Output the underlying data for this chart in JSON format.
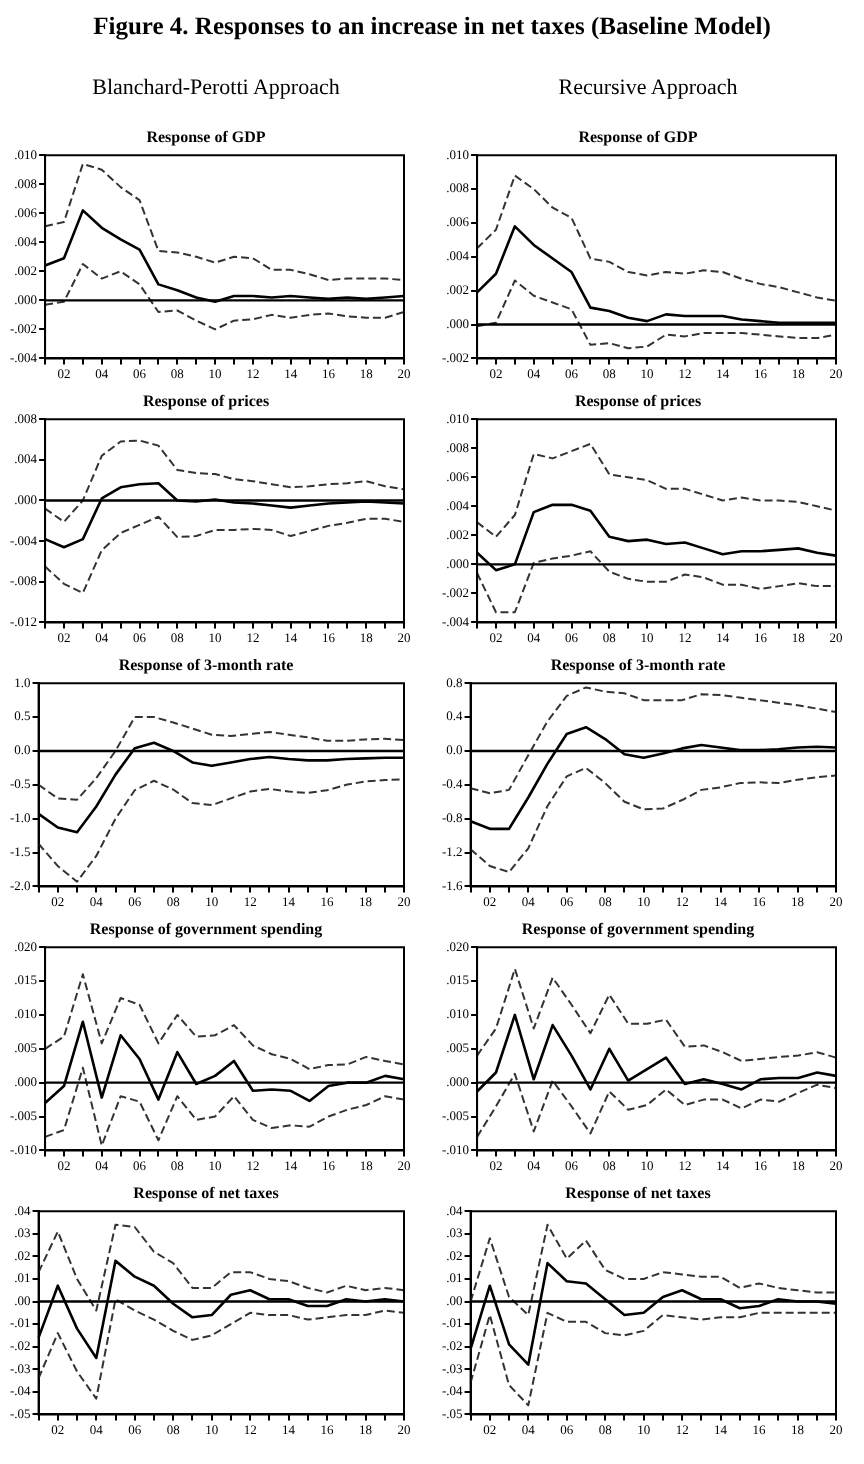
{
  "chart_data": [
    {
      "type": "line",
      "title": "Response of GDP",
      "annotations": [
        "Figure 4. Responses to an increase in net taxes (Baseline Model)",
        "Blanchard-Perotti Approach"
      ],
      "categories": [
        null,
        "02",
        null,
        "04",
        null,
        "06",
        null,
        "08",
        null,
        "10",
        null,
        "12",
        null,
        "14",
        null,
        "16",
        null,
        "18",
        null,
        "20"
      ],
      "ylim": [
        -0.004,
        0.01
      ],
      "yticks": [
        {
          "value": -0.004,
          "label": "-.004"
        },
        {
          "value": -0.002,
          "label": "-.002"
        },
        {
          "value": 0,
          "label": ".000"
        },
        {
          "value": 0.002,
          "label": ".002"
        },
        {
          "value": 0.004,
          "label": ".004"
        },
        {
          "value": 0.006,
          "label": ".006"
        },
        {
          "value": 0.008,
          "label": ".008"
        },
        {
          "value": 0.01,
          "label": ".010"
        }
      ],
      "ref_lines": [
        {
          "axis": "y",
          "value": 0,
          "color": "#000000"
        }
      ],
      "series": [
        {
          "color": "#000000",
          "line_style": "solid",
          "values": [
            0.0024,
            0.0029,
            0.0062,
            0.005,
            0.0042,
            0.0035,
            0.0011,
            0.0007,
            0.0002,
            -0.0001,
            0.0003,
            0.0003,
            0.0002,
            0.0003,
            0.0002,
            0.0001,
            0.0002,
            0.0001,
            0.0002,
            0.0003
          ]
        },
        {
          "color": "#333333",
          "line_style": "dashed",
          "values": [
            0.0051,
            0.0054,
            0.0094,
            0.009,
            0.0078,
            0.0069,
            0.0034,
            0.0033,
            0.003,
            0.0026,
            0.003,
            0.0029,
            0.0021,
            0.0021,
            0.0018,
            0.0014,
            0.0015,
            0.0015,
            0.0015,
            0.0014
          ]
        },
        {
          "color": "#333333",
          "line_style": "dashed",
          "values": [
            -0.0003,
            -0.0001,
            0.0025,
            0.0015,
            0.002,
            0.0011,
            -0.0008,
            -0.0007,
            -0.0014,
            -0.002,
            -0.0014,
            -0.0013,
            -0.001,
            -0.0012,
            -0.001,
            -0.0009,
            -0.0011,
            -0.0012,
            -0.0012,
            -0.0008
          ]
        }
      ]
    },
    {
      "type": "line",
      "title": "Response of GDP",
      "annotations": [
        "Recursive Approach"
      ],
      "categories": [
        null,
        "02",
        null,
        "04",
        null,
        "06",
        null,
        "08",
        null,
        "10",
        null,
        "12",
        null,
        "14",
        null,
        "16",
        null,
        "18",
        null,
        "20"
      ],
      "ylim": [
        -0.002,
        0.01
      ],
      "yticks": [
        {
          "value": -0.002,
          "label": "-.002"
        },
        {
          "value": 0,
          "label": ".000"
        },
        {
          "value": 0.002,
          "label": ".002"
        },
        {
          "value": 0.004,
          "label": ".004"
        },
        {
          "value": 0.006,
          "label": ".006"
        },
        {
          "value": 0.008,
          "label": ".008"
        },
        {
          "value": 0.01,
          "label": ".010"
        }
      ],
      "ref_lines": [
        {
          "axis": "y",
          "value": 0,
          "color": "#000000"
        }
      ],
      "series": [
        {
          "color": "#000000",
          "line_style": "solid",
          "values": [
            0.0019,
            0.003,
            0.0058,
            0.0047,
            0.0039,
            0.0031,
            0.001,
            0.0008,
            0.0004,
            0.0002,
            0.0006,
            0.0005,
            0.0005,
            0.0005,
            0.0003,
            0.0002,
            0.0001,
            0.0001,
            0.0001,
            0.0001
          ]
        },
        {
          "color": "#333333",
          "line_style": "dashed",
          "values": [
            0.0045,
            0.0056,
            0.0088,
            0.008,
            0.0069,
            0.0063,
            0.0039,
            0.0037,
            0.0031,
            0.0029,
            0.0031,
            0.003,
            0.0032,
            0.0031,
            0.0027,
            0.0024,
            0.0022,
            0.0019,
            0.0016,
            0.0014
          ]
        },
        {
          "color": "#333333",
          "line_style": "dashed",
          "values": [
            -0.0001,
            0.0001,
            0.0026,
            0.0017,
            0.0013,
            0.0009,
            -0.0012,
            -0.0011,
            -0.0014,
            -0.0013,
            -0.0006,
            -0.0007,
            -0.0005,
            -0.0005,
            -0.0005,
            -0.0006,
            -0.0007,
            -0.0008,
            -0.0008,
            -0.0006
          ]
        }
      ]
    },
    {
      "type": "line",
      "title": "Response of prices",
      "categories": [
        null,
        "02",
        null,
        "04",
        null,
        "06",
        null,
        "08",
        null,
        "10",
        null,
        "12",
        null,
        "14",
        null,
        "16",
        null,
        "18",
        null,
        "20"
      ],
      "ylim": [
        -0.012,
        0.008
      ],
      "yticks": [
        {
          "value": -0.012,
          "label": "-.012"
        },
        {
          "value": -0.008,
          "label": "-.008"
        },
        {
          "value": -0.004,
          "label": "-.004"
        },
        {
          "value": 0,
          "label": ".000"
        },
        {
          "value": 0.004,
          "label": ".004"
        },
        {
          "value": 0.008,
          "label": ".008"
        }
      ],
      "ref_lines": [
        {
          "axis": "y",
          "value": 0,
          "color": "#000000"
        }
      ],
      "series": [
        {
          "color": "#000000",
          "line_style": "solid",
          "values": [
            -0.0038,
            -0.0046,
            -0.0038,
            0.0002,
            0.0013,
            0.0016,
            0.0017,
            0.0,
            -0.0001,
            0.0001,
            -0.0002,
            -0.0003,
            -0.0005,
            -0.0007,
            -0.0005,
            -0.0003,
            -0.0002,
            -0.0001,
            -0.0002,
            -0.0003
          ]
        },
        {
          "color": "#333333",
          "line_style": "dashed",
          "values": [
            -0.0008,
            -0.0021,
            0.0,
            0.0044,
            0.0058,
            0.0059,
            0.0054,
            0.003,
            0.0027,
            0.0026,
            0.0021,
            0.0019,
            0.0016,
            0.0013,
            0.0014,
            0.0016,
            0.0017,
            0.0019,
            0.0014,
            0.0011
          ]
        },
        {
          "color": "#333333",
          "line_style": "dashed",
          "values": [
            -0.0065,
            -0.0082,
            -0.0091,
            -0.0049,
            -0.0032,
            -0.0024,
            -0.0016,
            -0.0036,
            -0.0035,
            -0.0029,
            -0.0029,
            -0.0028,
            -0.0029,
            -0.0035,
            -0.003,
            -0.0025,
            -0.0022,
            -0.0018,
            -0.0018,
            -0.0021
          ]
        }
      ]
    },
    {
      "type": "line",
      "title": "Response of prices",
      "categories": [
        null,
        "02",
        null,
        "04",
        null,
        "06",
        null,
        "08",
        null,
        "10",
        null,
        "12",
        null,
        "14",
        null,
        "16",
        null,
        "18",
        null,
        "20"
      ],
      "ylim": [
        -0.004,
        0.01
      ],
      "yticks": [
        {
          "value": -0.004,
          "label": "-.004"
        },
        {
          "value": -0.002,
          "label": "-.002"
        },
        {
          "value": 0,
          "label": ".000"
        },
        {
          "value": 0.002,
          "label": ".002"
        },
        {
          "value": 0.004,
          "label": ".004"
        },
        {
          "value": 0.006,
          "label": ".006"
        },
        {
          "value": 0.008,
          "label": ".008"
        },
        {
          "value": 0.01,
          "label": ".010"
        }
      ],
      "ref_lines": [
        {
          "axis": "y",
          "value": 0,
          "color": "#000000"
        }
      ],
      "series": [
        {
          "color": "#000000",
          "line_style": "solid",
          "values": [
            0.0008,
            -0.0004,
            0.0,
            0.0036,
            0.0041,
            0.0041,
            0.0037,
            0.0019,
            0.0016,
            0.0017,
            0.0014,
            0.0015,
            0.0011,
            0.0007,
            0.0009,
            0.0009,
            0.001,
            0.0011,
            0.0008,
            0.0006
          ]
        },
        {
          "color": "#333333",
          "line_style": "dashed",
          "values": [
            0.0029,
            0.0019,
            0.0034,
            0.0076,
            0.0073,
            0.0078,
            0.0083,
            0.0062,
            0.006,
            0.0058,
            0.0052,
            0.0052,
            0.0048,
            0.0044,
            0.0046,
            0.0044,
            0.0044,
            0.0043,
            0.004,
            0.0037
          ]
        },
        {
          "color": "#333333",
          "line_style": "dashed",
          "values": [
            -0.0006,
            -0.0033,
            -0.0033,
            0.0001,
            0.0004,
            0.0006,
            0.0009,
            -0.0005,
            -0.001,
            -0.0012,
            -0.0012,
            -0.0007,
            -0.0009,
            -0.0014,
            -0.0014,
            -0.0017,
            -0.0015,
            -0.0013,
            -0.0015,
            -0.0015
          ]
        }
      ]
    },
    {
      "type": "line",
      "title": "Response of 3-month rate",
      "categories": [
        null,
        "02",
        null,
        "04",
        null,
        "06",
        null,
        "08",
        null,
        "10",
        null,
        "12",
        null,
        "14",
        null,
        "16",
        null,
        "18",
        null,
        "20"
      ],
      "ylim": [
        -2,
        1
      ],
      "yticks": [
        {
          "value": -2,
          "label": "-2.0"
        },
        {
          "value": -1.5,
          "label": "-1.5"
        },
        {
          "value": -1,
          "label": "-1.0"
        },
        {
          "value": -0.5,
          "label": "-0.5"
        },
        {
          "value": 0,
          "label": "0.0"
        },
        {
          "value": 0.5,
          "label": "0.5"
        },
        {
          "value": 1,
          "label": "1.0"
        }
      ],
      "ref_lines": [
        {
          "axis": "y",
          "value": 0,
          "color": "#000000"
        }
      ],
      "series": [
        {
          "color": "#000000",
          "line_style": "solid",
          "values": [
            -0.93,
            -1.13,
            -1.2,
            -0.82,
            -0.35,
            0.04,
            0.12,
            0.0,
            -0.17,
            -0.22,
            -0.17,
            -0.12,
            -0.09,
            -0.12,
            -0.14,
            -0.14,
            -0.12,
            -0.11,
            -0.1,
            -0.1
          ]
        },
        {
          "color": "#333333",
          "line_style": "dashed",
          "values": [
            -0.5,
            -0.7,
            -0.72,
            -0.4,
            0.0,
            0.5,
            0.5,
            0.42,
            0.33,
            0.24,
            0.22,
            0.25,
            0.28,
            0.24,
            0.2,
            0.15,
            0.15,
            0.17,
            0.18,
            0.16
          ]
        },
        {
          "color": "#333333",
          "line_style": "dashed",
          "values": [
            -1.37,
            -1.7,
            -1.93,
            -1.55,
            -1.0,
            -0.58,
            -0.44,
            -0.57,
            -0.77,
            -0.8,
            -0.7,
            -0.6,
            -0.56,
            -0.6,
            -0.62,
            -0.58,
            -0.5,
            -0.45,
            -0.43,
            -0.42
          ]
        }
      ]
    },
    {
      "type": "line",
      "title": "Response of 3-month rate",
      "categories": [
        null,
        "02",
        null,
        "04",
        null,
        "06",
        null,
        "08",
        null,
        "10",
        null,
        "12",
        null,
        "14",
        null,
        "16",
        null,
        "18",
        null,
        "20"
      ],
      "ylim": [
        -1.6,
        0.8
      ],
      "yticks": [
        {
          "value": -1.6,
          "label": "-1.6"
        },
        {
          "value": -1.2,
          "label": "-1.2"
        },
        {
          "value": -0.8,
          "label": "-0.8"
        },
        {
          "value": -0.4,
          "label": "-0.4"
        },
        {
          "value": 0,
          "label": "0.0"
        },
        {
          "value": 0.4,
          "label": "0.4"
        },
        {
          "value": 0.8,
          "label": "0.8"
        }
      ],
      "ref_lines": [
        {
          "axis": "y",
          "value": 0,
          "color": "#000000"
        }
      ],
      "series": [
        {
          "color": "#000000",
          "line_style": "solid",
          "values": [
            -0.83,
            -0.92,
            -0.92,
            -0.55,
            -0.15,
            0.2,
            0.28,
            0.14,
            -0.04,
            -0.08,
            -0.03,
            0.03,
            0.07,
            0.04,
            0.01,
            0.01,
            0.02,
            0.04,
            0.05,
            0.04
          ]
        },
        {
          "color": "#333333",
          "line_style": "dashed",
          "values": [
            -0.44,
            -0.5,
            -0.46,
            -0.05,
            0.35,
            0.65,
            0.75,
            0.7,
            0.68,
            0.6,
            0.6,
            0.6,
            0.67,
            0.66,
            0.63,
            0.6,
            0.57,
            0.54,
            0.5,
            0.46
          ]
        },
        {
          "color": "#333333",
          "line_style": "dashed",
          "values": [
            -1.16,
            -1.36,
            -1.43,
            -1.15,
            -0.65,
            -0.3,
            -0.2,
            -0.38,
            -0.6,
            -0.69,
            -0.68,
            -0.58,
            -0.46,
            -0.43,
            -0.38,
            -0.37,
            -0.38,
            -0.34,
            -0.31,
            -0.29
          ]
        }
      ]
    },
    {
      "type": "line",
      "title": "Response of government spending",
      "categories": [
        null,
        "02",
        null,
        "04",
        null,
        "06",
        null,
        "08",
        null,
        "10",
        null,
        "12",
        null,
        "14",
        null,
        "16",
        null,
        "18",
        null,
        "20"
      ],
      "ylim": [
        -0.01,
        0.02
      ],
      "yticks": [
        {
          "value": -0.01,
          "label": "-.010"
        },
        {
          "value": -0.005,
          "label": "-.005"
        },
        {
          "value": 0,
          "label": ".000"
        },
        {
          "value": 0.005,
          "label": ".005"
        },
        {
          "value": 0.01,
          "label": ".010"
        },
        {
          "value": 0.015,
          "label": ".015"
        },
        {
          "value": 0.02,
          "label": ".020"
        }
      ],
      "ref_lines": [
        {
          "axis": "y",
          "value": 0,
          "color": "#000000"
        }
      ],
      "series": [
        {
          "color": "#000000",
          "line_style": "solid",
          "values": [
            -0.003,
            -0.0005,
            0.009,
            -0.0022,
            0.007,
            0.0035,
            -0.0025,
            0.0045,
            -0.0002,
            0.001,
            0.0032,
            -0.0012,
            -0.001,
            -0.0012,
            -0.0027,
            -0.0005,
            0.0,
            0.0,
            0.001,
            0.0005
          ]
        },
        {
          "color": "#333333",
          "line_style": "dashed",
          "values": [
            0.005,
            0.0068,
            0.016,
            0.0058,
            0.0125,
            0.0115,
            0.0058,
            0.01,
            0.0068,
            0.007,
            0.0085,
            0.0055,
            0.0042,
            0.0035,
            0.002,
            0.0026,
            0.0027,
            0.0038,
            0.0032,
            0.0027
          ]
        },
        {
          "color": "#333333",
          "line_style": "dashed",
          "values": [
            -0.008,
            -0.007,
            0.0022,
            -0.0093,
            -0.002,
            -0.0028,
            -0.0085,
            -0.002,
            -0.0055,
            -0.005,
            -0.002,
            -0.0055,
            -0.0067,
            -0.0063,
            -0.0065,
            -0.005,
            -0.004,
            -0.0033,
            -0.002,
            -0.0025
          ]
        }
      ]
    },
    {
      "type": "line",
      "title": "Response of government spending",
      "categories": [
        null,
        "02",
        null,
        "04",
        null,
        "06",
        null,
        "08",
        null,
        "10",
        null,
        "12",
        null,
        "14",
        null,
        "16",
        null,
        "18",
        null,
        "20"
      ],
      "ylim": [
        -0.01,
        0.02
      ],
      "yticks": [
        {
          "value": -0.01,
          "label": "-.010"
        },
        {
          "value": -0.005,
          "label": "-.005"
        },
        {
          "value": 0,
          "label": ".000"
        },
        {
          "value": 0.005,
          "label": ".005"
        },
        {
          "value": 0.01,
          "label": ".010"
        },
        {
          "value": 0.015,
          "label": ".015"
        },
        {
          "value": 0.02,
          "label": ".020"
        }
      ],
      "ref_lines": [
        {
          "axis": "y",
          "value": 0,
          "color": "#000000"
        }
      ],
      "series": [
        {
          "color": "#000000",
          "line_style": "solid",
          "values": [
            -0.0013,
            0.0015,
            0.01,
            0.0005,
            0.0085,
            0.004,
            -0.001,
            0.005,
            0.0003,
            0.002,
            0.0037,
            -0.0002,
            0.0005,
            -0.0002,
            -0.001,
            0.0005,
            0.0007,
            0.0007,
            0.0015,
            0.001
          ]
        },
        {
          "color": "#333333",
          "line_style": "dashed",
          "values": [
            0.004,
            0.008,
            0.0168,
            0.008,
            0.0155,
            0.0115,
            0.0073,
            0.013,
            0.0087,
            0.0087,
            0.0093,
            0.0053,
            0.0055,
            0.0045,
            0.0032,
            0.0035,
            0.0038,
            0.004,
            0.0045,
            0.0037
          ]
        },
        {
          "color": "#333333",
          "line_style": "dashed",
          "values": [
            -0.008,
            -0.0035,
            0.0013,
            -0.0072,
            0.0003,
            -0.0035,
            -0.0075,
            -0.0013,
            -0.004,
            -0.0033,
            -0.001,
            -0.0033,
            -0.0025,
            -0.0025,
            -0.0038,
            -0.0025,
            -0.0028,
            -0.0015,
            -0.0003,
            -0.0008
          ]
        }
      ]
    },
    {
      "type": "line",
      "title": "Response of net taxes",
      "categories": [
        null,
        "02",
        null,
        "04",
        null,
        "06",
        null,
        "08",
        null,
        "10",
        null,
        "12",
        null,
        "14",
        null,
        "16",
        null,
        "18",
        null,
        "20"
      ],
      "ylim": [
        -0.05,
        0.04
      ],
      "yticks": [
        {
          "value": -0.05,
          "label": "-.05"
        },
        {
          "value": -0.04,
          "label": "-.04"
        },
        {
          "value": -0.03,
          "label": "-.03"
        },
        {
          "value": -0.02,
          "label": "-.02"
        },
        {
          "value": -0.01,
          "label": "-.01"
        },
        {
          "value": 0,
          "label": ".00"
        },
        {
          "value": 0.01,
          "label": ".01"
        },
        {
          "value": 0.02,
          "label": ".02"
        },
        {
          "value": 0.03,
          "label": ".03"
        },
        {
          "value": 0.04,
          "label": ".04"
        }
      ],
      "ref_lines": [
        {
          "axis": "y",
          "value": 0,
          "color": "#000000"
        }
      ],
      "series": [
        {
          "color": "#000000",
          "line_style": "solid",
          "values": [
            -0.016,
            0.007,
            -0.012,
            -0.025,
            0.018,
            0.011,
            0.007,
            -0.001,
            -0.007,
            -0.006,
            0.003,
            0.005,
            0.001,
            0.001,
            -0.002,
            -0.002,
            0.001,
            0.0,
            0.001,
            0.0
          ]
        },
        {
          "color": "#333333",
          "line_style": "dashed",
          "values": [
            0.013,
            0.031,
            0.01,
            -0.004,
            0.034,
            0.033,
            0.022,
            0.017,
            0.006,
            0.006,
            0.013,
            0.013,
            0.01,
            0.009,
            0.006,
            0.004,
            0.007,
            0.005,
            0.006,
            0.005
          ]
        },
        {
          "color": "#333333",
          "line_style": "dashed",
          "values": [
            -0.034,
            -0.014,
            -0.031,
            -0.043,
            0.001,
            -0.004,
            -0.008,
            -0.013,
            -0.017,
            -0.015,
            -0.01,
            -0.005,
            -0.006,
            -0.006,
            -0.008,
            -0.007,
            -0.006,
            -0.006,
            -0.004,
            -0.005
          ]
        }
      ]
    },
    {
      "type": "line",
      "title": "Response of net taxes",
      "categories": [
        null,
        "02",
        null,
        "04",
        null,
        "06",
        null,
        "08",
        null,
        "10",
        null,
        "12",
        null,
        "14",
        null,
        "16",
        null,
        "18",
        null,
        "20"
      ],
      "ylim": [
        -0.05,
        0.04
      ],
      "yticks": [
        {
          "value": -0.05,
          "label": "-.05"
        },
        {
          "value": -0.04,
          "label": "-.04"
        },
        {
          "value": -0.03,
          "label": "-.03"
        },
        {
          "value": -0.02,
          "label": "-.02"
        },
        {
          "value": -0.01,
          "label": "-.01"
        },
        {
          "value": 0,
          "label": ".00"
        },
        {
          "value": 0.01,
          "label": ".01"
        },
        {
          "value": 0.02,
          "label": ".02"
        },
        {
          "value": 0.03,
          "label": ".03"
        },
        {
          "value": 0.04,
          "label": ".04"
        }
      ],
      "ref_lines": [
        {
          "axis": "y",
          "value": 0,
          "color": "#000000"
        }
      ],
      "series": [
        {
          "color": "#000000",
          "line_style": "solid",
          "values": [
            -0.021,
            0.007,
            -0.019,
            -0.028,
            0.017,
            0.009,
            0.008,
            0.001,
            -0.006,
            -0.005,
            0.002,
            0.005,
            0.001,
            0.001,
            -0.003,
            -0.002,
            0.001,
            0.0,
            0.0,
            -0.001
          ]
        },
        {
          "color": "#333333",
          "line_style": "dashed",
          "values": [
            0.0,
            0.028,
            0.002,
            -0.006,
            0.034,
            0.019,
            0.027,
            0.014,
            0.01,
            0.01,
            0.013,
            0.012,
            0.011,
            0.011,
            0.006,
            0.008,
            0.006,
            0.005,
            0.004,
            0.004
          ]
        },
        {
          "color": "#333333",
          "line_style": "dashed",
          "values": [
            -0.036,
            -0.006,
            -0.037,
            -0.046,
            -0.005,
            -0.009,
            -0.009,
            -0.014,
            -0.015,
            -0.013,
            -0.006,
            -0.007,
            -0.008,
            -0.007,
            -0.007,
            -0.005,
            -0.005,
            -0.005,
            -0.005,
            -0.005
          ]
        }
      ]
    }
  ]
}
